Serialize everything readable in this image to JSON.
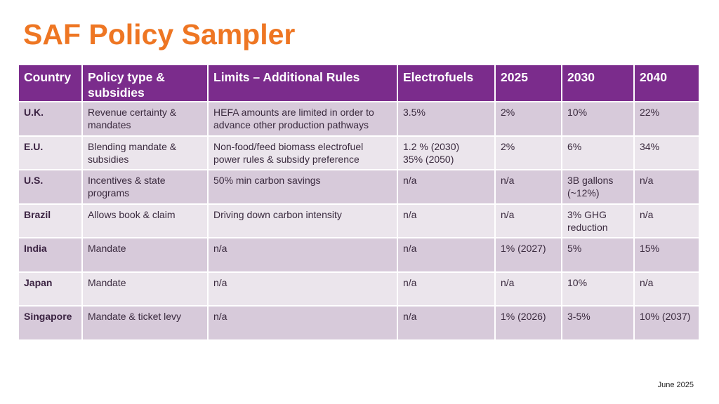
{
  "title": "SAF Policy Sampler",
  "colors": {
    "title": "#EE7623",
    "header_bg": "#7B2C8C",
    "row_odd": "#D7CADA",
    "row_even": "#EBE5EC"
  },
  "table": {
    "headers": [
      "Country",
      "Policy type & subsidies",
      "Limits – Additional Rules",
      "Electrofuels",
      "2025",
      "2030",
      "2040"
    ],
    "rows": [
      [
        "U.K.",
        "Revenue certainty & mandates",
        "HEFA amounts are limited in order to advance other production pathways",
        "3.5%",
        "2%",
        "10%",
        "22%"
      ],
      [
        "E.U.",
        "Blending mandate & subsidies",
        "Non-food/feed biomass electrofuel power rules & subsidy preference",
        "1.2 % (2030) 35% (2050)",
        "2%",
        "6%",
        "34%"
      ],
      [
        "U.S.",
        "Incentives  & state programs",
        "50% min carbon savings",
        "n/a",
        "n/a",
        "3B gallons (~12%)",
        "n/a"
      ],
      [
        "Brazil",
        "Allows book & claim",
        "Driving down carbon intensity",
        "n/a",
        "n/a",
        "3% GHG reduction",
        "n/a"
      ],
      [
        "India",
        "Mandate",
        "n/a",
        "n/a",
        "1% (2027)",
        "5%",
        "15%"
      ],
      [
        "Japan",
        "Mandate",
        "n/a",
        "n/a",
        "n/a",
        "10%",
        "n/a"
      ],
      [
        "Singapore",
        "Mandate & ticket levy",
        "n/a",
        "n/a",
        "1% (2026)",
        "3-5%",
        "10% (2037)"
      ]
    ]
  },
  "footer": "June 2025"
}
